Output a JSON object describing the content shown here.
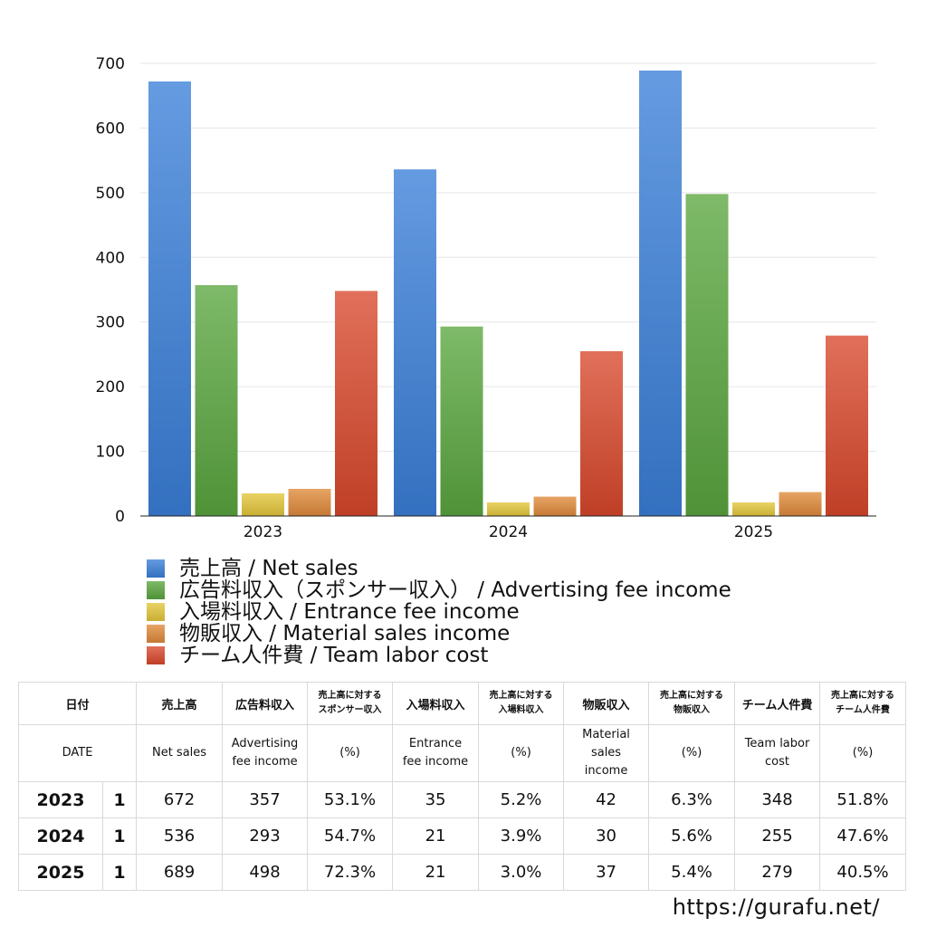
{
  "chart_data": {
    "type": "bar",
    "categories": [
      "2023",
      "2024",
      "2025"
    ],
    "yticks": [
      "0",
      "100",
      "200",
      "300",
      "400",
      "500",
      "600",
      "700"
    ],
    "ylim": [
      0,
      700
    ],
    "grid": true,
    "series": [
      {
        "name": "売上高 / Net sales",
        "color": "#3a7fd9",
        "values": [
          672,
          536,
          689
        ]
      },
      {
        "name": "広告料収入（スポンサー収入） / Advertising fee income",
        "color": "#5aa63f",
        "values": [
          357,
          293,
          498
        ]
      },
      {
        "name": "入場料収入 / Entrance fee income",
        "color": "#e3c63a",
        "values": [
          35,
          21,
          21
        ]
      },
      {
        "name": "物販収入 / Material sales income",
        "color": "#e08a3a",
        "values": [
          42,
          30,
          37
        ]
      },
      {
        "name": "チーム人件費 / Team labor cost",
        "color": "#d9482b",
        "values": [
          348,
          255,
          279
        ]
      }
    ]
  },
  "table": {
    "header_jp": [
      "日付",
      "売上高",
      "広告料収入",
      "売上高に対する\nスポンサー収入",
      "入場料収入",
      "売上高に対する\n入場料収入",
      "物販収入",
      "売上高に対する\n物販収入",
      "チーム人件費",
      "売上高に対する\nチーム人件費"
    ],
    "header_en": [
      "DATE",
      "Net sales",
      "Advertising\nfee income",
      "(%)",
      "Entrance\nfee income",
      "(%)",
      "Material\nsales\nincome",
      "(%)",
      "Team labor\ncost",
      "(%)"
    ],
    "rows": [
      {
        "year": "2023",
        "count": "1",
        "values": [
          "672",
          "357",
          "53.1%",
          "35",
          "5.2%",
          "42",
          "6.3%",
          "348",
          "51.8%"
        ]
      },
      {
        "year": "2024",
        "count": "1",
        "values": [
          "536",
          "293",
          "54.7%",
          "21",
          "3.9%",
          "30",
          "5.6%",
          "255",
          "47.6%"
        ]
      },
      {
        "year": "2025",
        "count": "1",
        "values": [
          "689",
          "498",
          "72.3%",
          "21",
          "3.0%",
          "37",
          "5.4%",
          "279",
          "40.5%"
        ]
      }
    ]
  },
  "footer": {
    "url": "https://gurafu.net/"
  }
}
